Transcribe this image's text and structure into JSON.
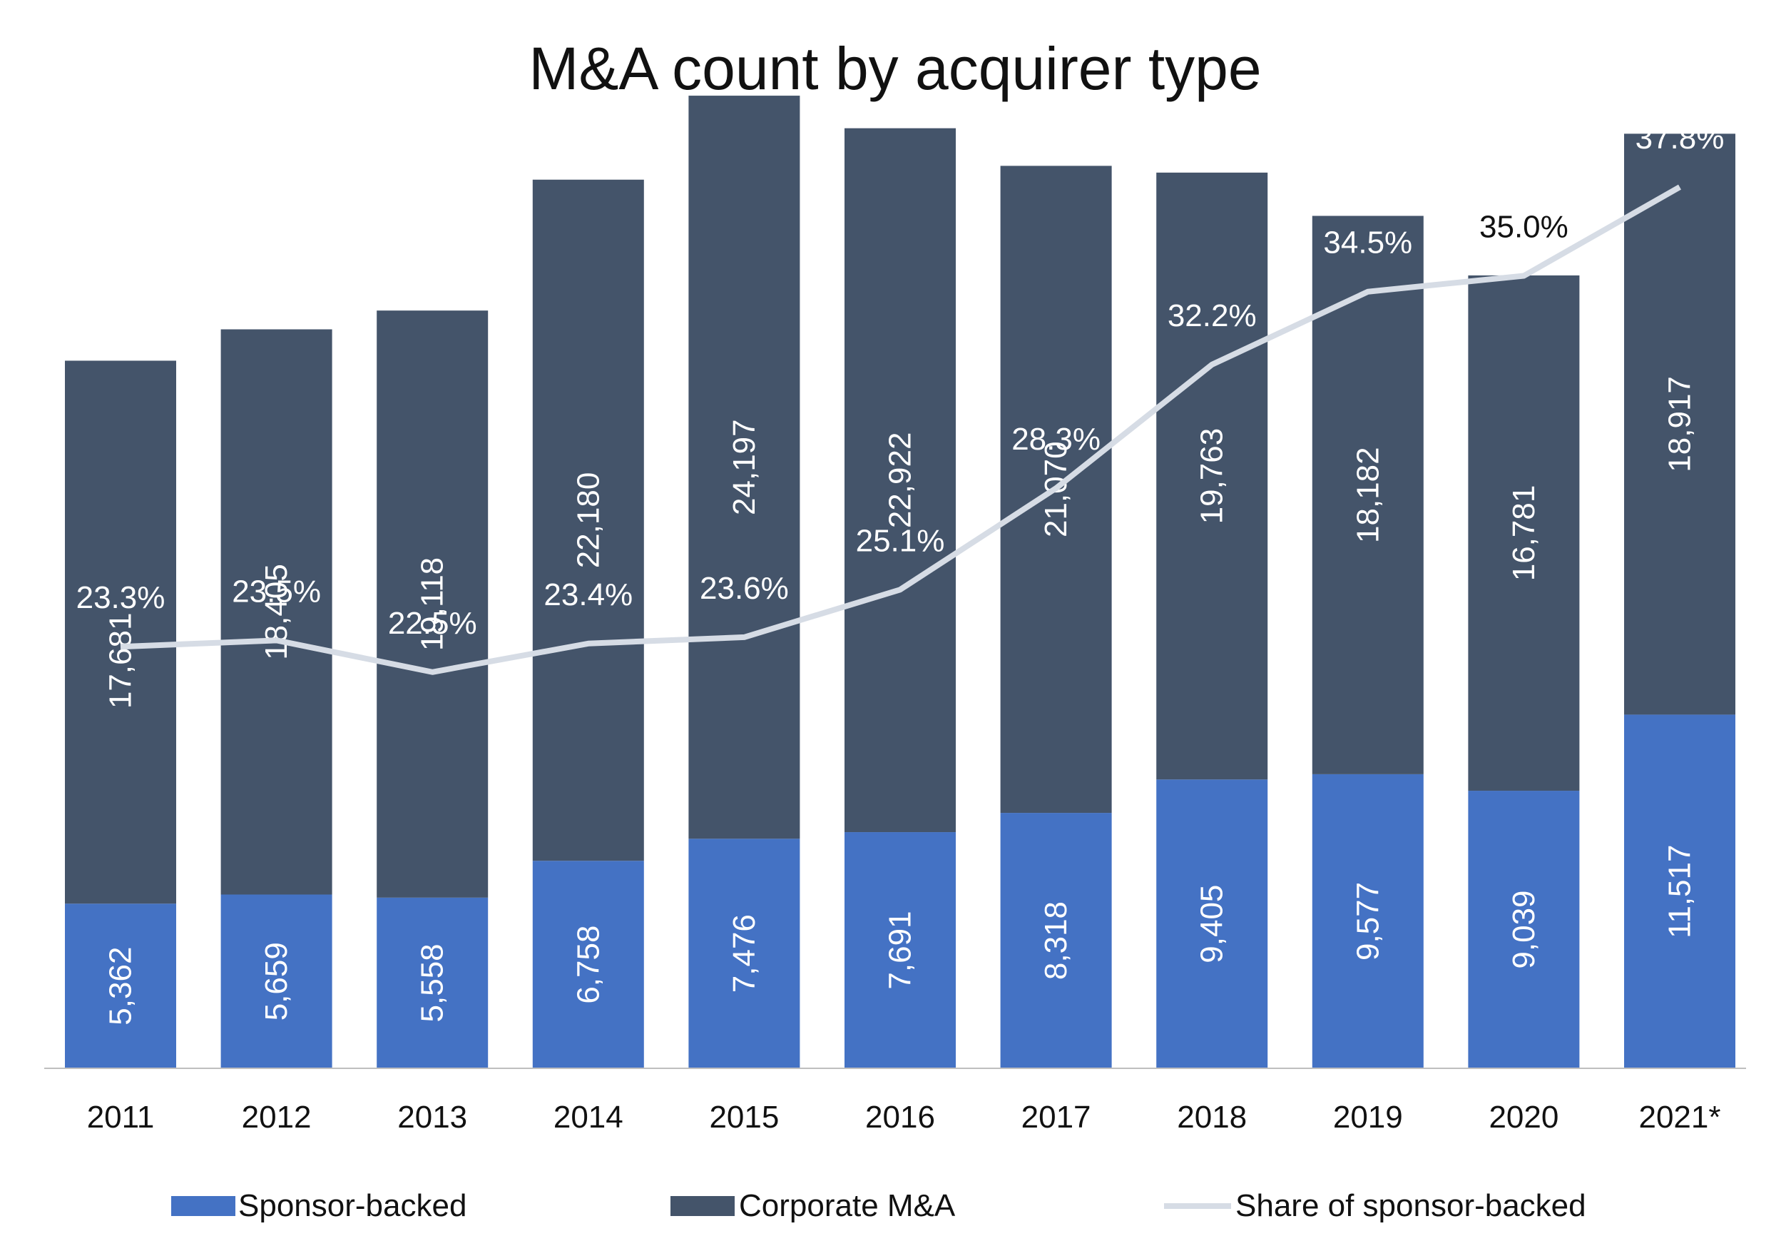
{
  "chart_data": {
    "type": "bar",
    "stacked": true,
    "title": "M&A count by acquirer type",
    "xlabel": "",
    "ylabel": "",
    "categories": [
      "2011",
      "2012",
      "2013",
      "2014",
      "2015",
      "2016",
      "2017",
      "2018",
      "2019",
      "2020",
      "2021*"
    ],
    "series": [
      {
        "name": "Sponsor-backed",
        "kind": "bar",
        "color": "#4472C4",
        "values": [
          5362,
          5659,
          5558,
          6758,
          7476,
          7691,
          8318,
          9405,
          9577,
          9039,
          11517
        ],
        "labels": [
          "5,362",
          "5,659",
          "5,558",
          "6,758",
          "7,476",
          "7,691",
          "8,318",
          "9,405",
          "9,577",
          "9,039",
          "11,517"
        ]
      },
      {
        "name": "Corporate M&A",
        "kind": "bar",
        "color": "#44546A",
        "values": [
          17681,
          18405,
          19118,
          22180,
          24197,
          22922,
          21070,
          19763,
          18182,
          16781,
          18917
        ],
        "labels": [
          "17,681",
          "18,405",
          "19,118",
          "22,180",
          "24,197",
          "22,922",
          "21,070",
          "19,763",
          "18,182",
          "16,781",
          "18,917"
        ]
      },
      {
        "name": "Share of sponsor-backed",
        "kind": "line",
        "color": "#D6DCE5",
        "values": [
          23.3,
          23.5,
          22.5,
          23.4,
          23.6,
          25.1,
          28.3,
          32.2,
          34.5,
          35.0,
          37.8
        ],
        "labels": [
          "23.3%",
          "23.5%",
          "22.5%",
          "23.4%",
          "23.6%",
          "25.1%",
          "28.3%",
          "32.2%",
          "34.5%",
          "35.0%",
          "37.8%"
        ]
      }
    ],
    "ylim": [
      0,
      32000
    ],
    "y2lim": [
      10,
      41
    ],
    "grid": false,
    "legend_position": "bottom"
  }
}
